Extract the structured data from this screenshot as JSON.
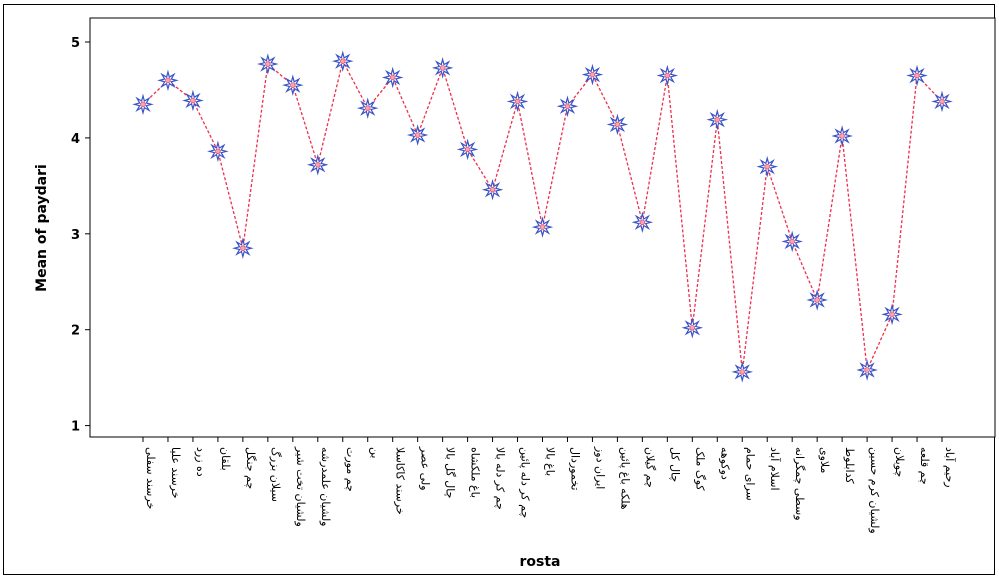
{
  "chart_data": {
    "type": "line",
    "xlabel": "rosta",
    "ylabel": "Mean of paydari",
    "ylim": [
      0.85,
      5.2
    ],
    "yticks": [
      1,
      2,
      3,
      4,
      5
    ],
    "grid": false,
    "line_color": "#ee2f4e",
    "marker_color": "#3a53c6",
    "categories": [
      "خرسند سفلی",
      "خرسند علیا",
      "ده زرد",
      "بلقان",
      "چم جنگل",
      "سیلان بزرگ",
      "ولشیان تخت شیر",
      "ولشیان علمدرشه",
      "چم مورت",
      "بن",
      "خرسند کاکاسلا",
      "ولی عصر",
      "چال گل بالا",
      "باغ ملکشاه",
      "چم کر دله بالا",
      "چم کر دله پائین",
      "باغ بالا",
      "تخموردال",
      "ایران دوز",
      "هلکه باغ پائین",
      "چم گیلان",
      "چال کل",
      "کوگ ملک",
      "دوکوهه",
      "سرای حمام",
      "اسلام آباد",
      "وسطی چمگرانه",
      "ملاوی",
      "کدابلوط",
      "ولشیان کرم حسین",
      "چوبلان",
      "چم قلعه",
      "رحیم آباد"
    ],
    "values": [
      4.35,
      4.6,
      4.39,
      3.86,
      2.85,
      4.77,
      4.55,
      3.72,
      4.8,
      4.31,
      4.63,
      4.03,
      4.73,
      3.88,
      3.46,
      4.38,
      3.07,
      4.33,
      4.66,
      4.14,
      3.12,
      4.65,
      2.02,
      4.19,
      1.56,
      3.7,
      2.92,
      2.31,
      4.02,
      1.58,
      2.16,
      4.65,
      4.38
    ]
  }
}
